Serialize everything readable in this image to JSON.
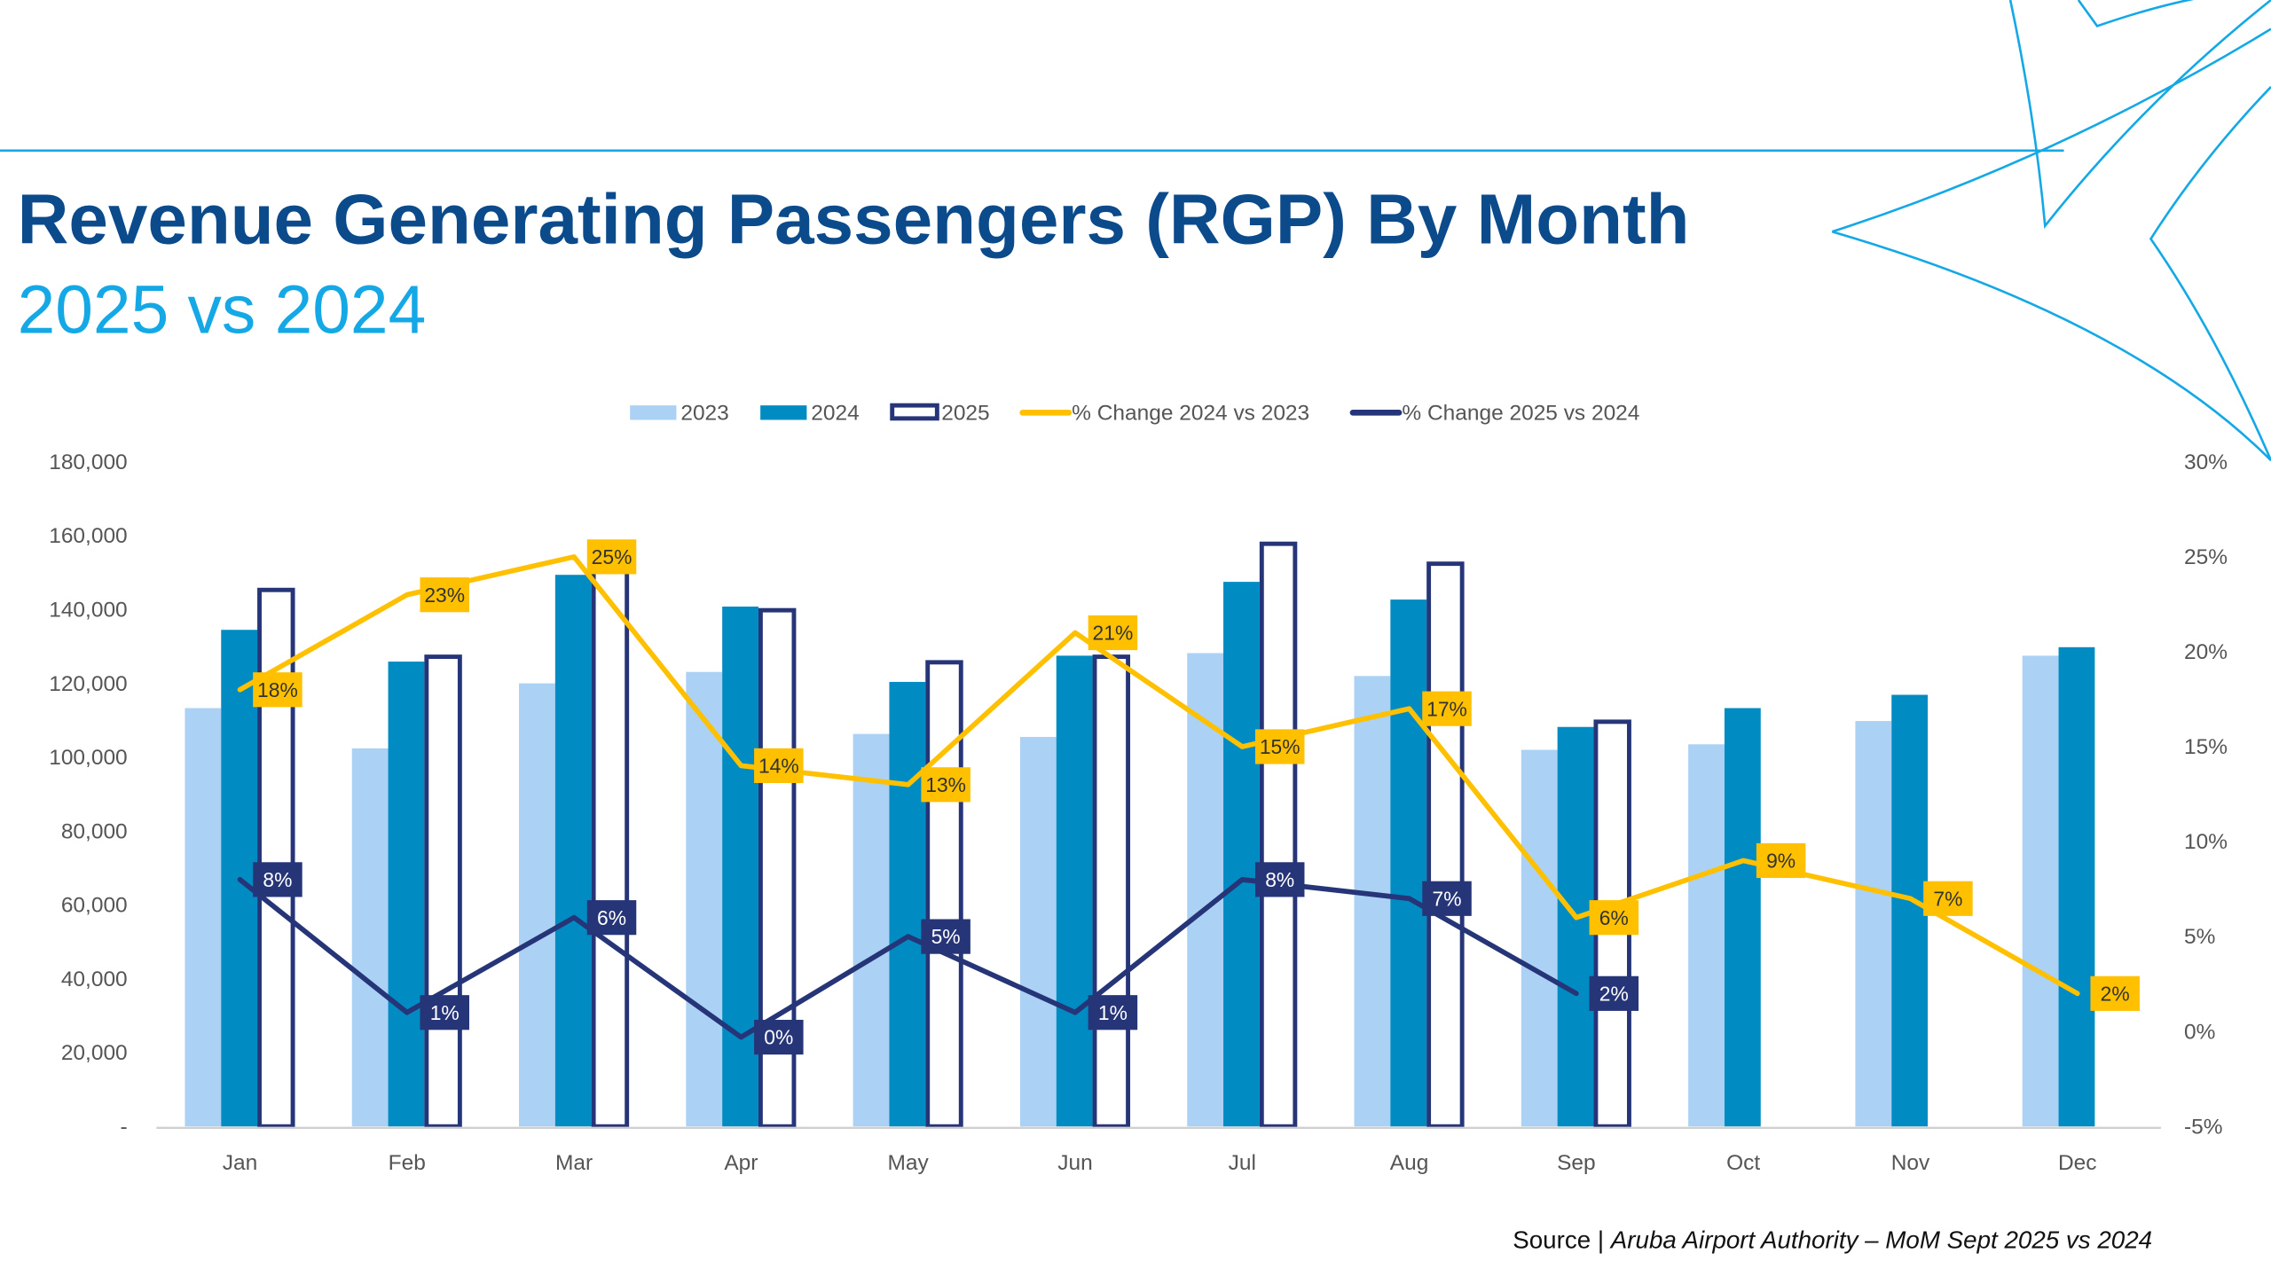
{
  "header": {
    "title": "Revenue Generating Passengers (RGP) By Month",
    "subtitle": "2025 vs 2024"
  },
  "source": {
    "prefix": "Source | ",
    "text": "Aruba Airport Authority – MoM Sept 2025 vs 2024"
  },
  "colors": {
    "title": "#0b4a8b",
    "subtitle": "#14a8e6",
    "s2023": "#abd1f4",
    "s2024": "#008bc2",
    "s2025": "#263577",
    "pct2024": "#ffc000",
    "pct2025": "#263577",
    "decor": "#14a8e6"
  },
  "chart_data": {
    "type": "bar",
    "categories": [
      "Jan",
      "Feb",
      "Mar",
      "Apr",
      "May",
      "Jun",
      "Jul",
      "Aug",
      "Sep",
      "Oct",
      "Nov",
      "Dec"
    ],
    "series": [
      {
        "name": "2023",
        "kind": "bar",
        "axis": "left",
        "values": [
          113300,
          102400,
          120000,
          123100,
          106300,
          105500,
          128200,
          122000,
          102000,
          103500,
          109800,
          127500
        ]
      },
      {
        "name": "2024",
        "kind": "bar",
        "axis": "left",
        "values": [
          134500,
          125900,
          149400,
          140800,
          120400,
          127500,
          147500,
          142700,
          108200,
          113300,
          116900,
          129800
        ]
      },
      {
        "name": "2025",
        "kind": "bar-outline",
        "axis": "left",
        "values": [
          145900,
          127800,
          158800,
          140400,
          126300,
          127800,
          158400,
          153000,
          110200,
          null,
          null,
          null
        ]
      },
      {
        "name": "% Change 2024 vs 2023",
        "kind": "line",
        "axis": "right",
        "values": [
          18,
          23,
          25,
          14,
          13,
          21,
          15,
          17,
          6,
          9,
          7,
          2
        ],
        "labels": [
          "18%",
          "23%",
          "25%",
          "14%",
          "13%",
          "21%",
          "15%",
          "17%",
          "6%",
          "9%",
          "7%",
          "2%"
        ]
      },
      {
        "name": "% Change 2025 vs 2024",
        "kind": "line",
        "axis": "right",
        "values": [
          8,
          1,
          6,
          -0.3,
          5,
          1,
          8,
          7,
          2,
          null,
          null,
          null
        ],
        "labels": [
          "8%",
          "1%",
          "6%",
          "0%",
          "5%",
          "1%",
          "8%",
          "7%",
          "2%",
          null,
          null,
          null
        ]
      }
    ],
    "left_axis": {
      "ylim": [
        0,
        180000
      ],
      "ticks": [
        "-",
        "20,000",
        "40,000",
        "60,000",
        "80,000",
        "100,000",
        "120,000",
        "140,000",
        "160,000",
        "180,000"
      ]
    },
    "right_axis": {
      "ylim": [
        -5,
        30
      ],
      "ticks": [
        "-5%",
        "0%",
        "5%",
        "10%",
        "15%",
        "20%",
        "25%",
        "30%"
      ]
    },
    "legend_position": "top",
    "grid": false
  }
}
